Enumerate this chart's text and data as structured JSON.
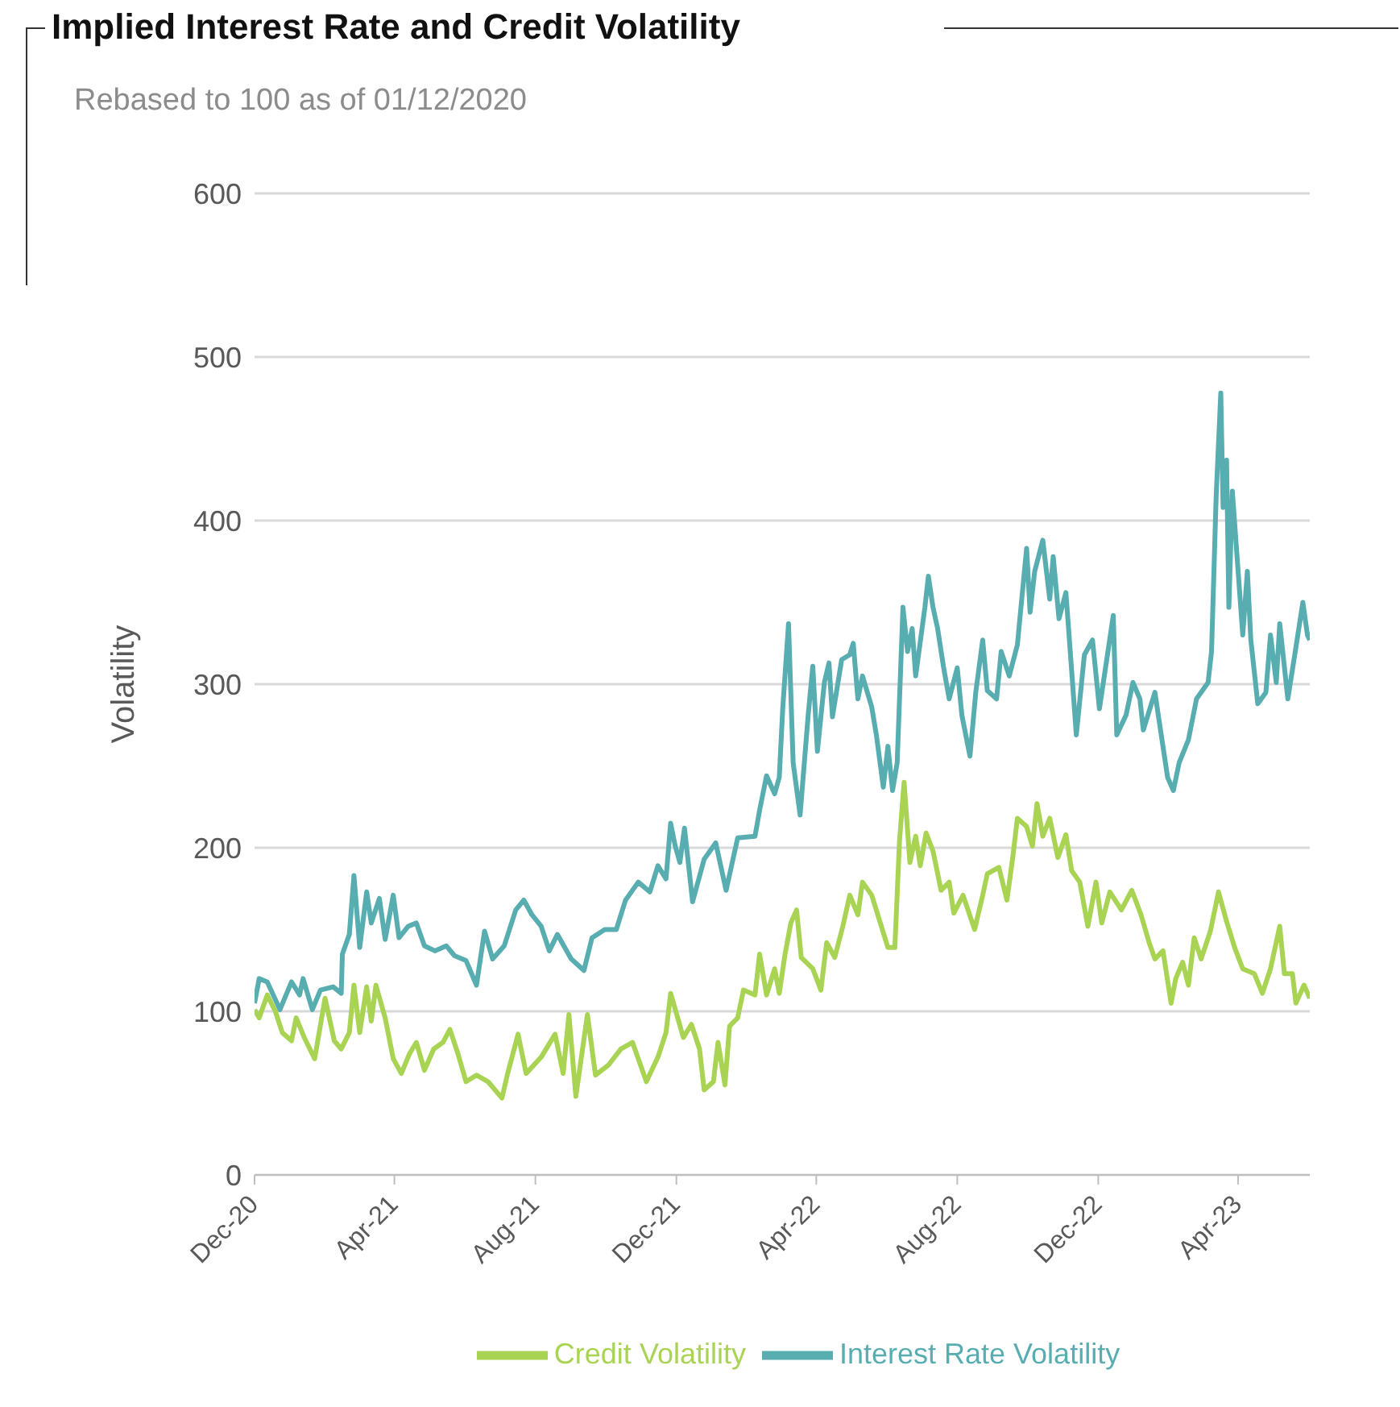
{
  "chart_data": {
    "type": "line",
    "title": "Implied Interest Rate and Credit Volatility",
    "subtitle": "Rebased to 100 as of 01/12/2020",
    "ylabel": "Volatility",
    "xlim": [
      "2020-12-01",
      "2023-06-02"
    ],
    "xticks": [
      {
        "value": "2020-12-01",
        "label": "Dec-20"
      },
      {
        "value": "2021-04-01",
        "label": "Apr-21"
      },
      {
        "value": "2021-08-01",
        "label": "Aug-21"
      },
      {
        "value": "2021-12-01",
        "label": "Dec-21"
      },
      {
        "value": "2022-04-01",
        "label": "Apr-22"
      },
      {
        "value": "2022-08-01",
        "label": "Aug-22"
      },
      {
        "value": "2022-12-01",
        "label": "Dec-22"
      },
      {
        "value": "2023-04-01",
        "label": "Apr-23"
      }
    ],
    "ylim": [
      0,
      600
    ],
    "yticks": [
      0,
      100,
      200,
      300,
      400,
      500,
      600
    ],
    "grid": "y",
    "legend": "bottom",
    "marker": "none",
    "line_style": "solid",
    "series": [
      {
        "name": "Interest Rate Volatility",
        "color": "#57adb0",
        "x": [
          "2020-12-01",
          "2020-12-05",
          "2020-12-12",
          "2020-12-23",
          "2021-01-02",
          "2021-01-09",
          "2021-01-12",
          "2021-01-20",
          "2021-01-27",
          "2021-02-07",
          "2021-02-14",
          "2021-02-15",
          "2021-02-21",
          "2021-02-25",
          "2021-03-02",
          "2021-03-08",
          "2021-03-12",
          "2021-03-19",
          "2021-03-24",
          "2021-03-31",
          "2021-04-05",
          "2021-04-13",
          "2021-04-20",
          "2021-04-27",
          "2021-05-06",
          "2021-05-16",
          "2021-05-23",
          "2021-06-02",
          "2021-06-11",
          "2021-06-18",
          "2021-06-25",
          "2021-07-05",
          "2021-07-15",
          "2021-07-22",
          "2021-07-29",
          "2021-08-06",
          "2021-08-13",
          "2021-08-20",
          "2021-09-01",
          "2021-09-12",
          "2021-09-19",
          "2021-09-30",
          "2021-10-10",
          "2021-10-18",
          "2021-10-29",
          "2021-11-08",
          "2021-11-15",
          "2021-11-22",
          "2021-11-26",
          "2021-11-30",
          "2021-12-04",
          "2021-12-08",
          "2021-12-15",
          "2021-12-25",
          "2022-01-04",
          "2022-01-13",
          "2022-01-23",
          "2022-02-07",
          "2022-02-11",
          "2022-02-17",
          "2022-02-24",
          "2022-02-28",
          "2022-03-03",
          "2022-03-08",
          "2022-03-12",
          "2022-03-18",
          "2022-03-25",
          "2022-03-29",
          "2022-04-02",
          "2022-04-08",
          "2022-04-12",
          "2022-04-15",
          "2022-04-23",
          "2022-04-30",
          "2022-05-03",
          "2022-05-07",
          "2022-05-11",
          "2022-05-19",
          "2022-05-23",
          "2022-05-29",
          "2022-06-02",
          "2022-06-06",
          "2022-06-10",
          "2022-06-15",
          "2022-06-19",
          "2022-06-23",
          "2022-06-26",
          "2022-07-04",
          "2022-07-07",
          "2022-07-11",
          "2022-07-15",
          "2022-07-20",
          "2022-07-25",
          "2022-08-01",
          "2022-08-05",
          "2022-08-12",
          "2022-08-17",
          "2022-08-23",
          "2022-08-27",
          "2022-09-04",
          "2022-09-08",
          "2022-09-15",
          "2022-09-22",
          "2022-09-30",
          "2022-10-03",
          "2022-10-07",
          "2022-10-14",
          "2022-10-20",
          "2022-10-23",
          "2022-10-28",
          "2022-11-03",
          "2022-11-08",
          "2022-11-12",
          "2022-11-19",
          "2022-11-26",
          "2022-12-02",
          "2022-12-14",
          "2022-12-17",
          "2022-12-25",
          "2022-12-31",
          "2023-01-06",
          "2023-01-09",
          "2023-01-19",
          "2023-01-23",
          "2023-01-30",
          "2023-02-04",
          "2023-02-09",
          "2023-02-17",
          "2023-02-24",
          "2023-03-06",
          "2023-03-09",
          "2023-03-13",
          "2023-03-17",
          "2023-03-19",
          "2023-03-22",
          "2023-03-24",
          "2023-03-27",
          "2023-04-01",
          "2023-04-05",
          "2023-04-09",
          "2023-04-12",
          "2023-04-18",
          "2023-04-25",
          "2023-04-29",
          "2023-05-04",
          "2023-05-07",
          "2023-05-14",
          "2023-05-20",
          "2023-05-27",
          "2023-05-31",
          "2023-06-02"
        ],
        "values": [
          105,
          120,
          118,
          101,
          118,
          110,
          120,
          101,
          113,
          115,
          111,
          135,
          147,
          183,
          139,
          173,
          154,
          169,
          144,
          171,
          145,
          152,
          154,
          140,
          137,
          140,
          134,
          131,
          116,
          149,
          132,
          140,
          162,
          168,
          159,
          152,
          137,
          147,
          132,
          125,
          145,
          150,
          150,
          168,
          179,
          173,
          189,
          181,
          215,
          201,
          191,
          212,
          167,
          193,
          203,
          174,
          206,
          207,
          223,
          244,
          233,
          243,
          285,
          337,
          252,
          220,
          281,
          311,
          259,
          301,
          313,
          280,
          315,
          318,
          325,
          291,
          305,
          286,
          269,
          237,
          262,
          235,
          252,
          347,
          320,
          334,
          305,
          347,
          366,
          347,
          334,
          311,
          291,
          310,
          281,
          256,
          295,
          327,
          296,
          291,
          320,
          305,
          324,
          383,
          344,
          369,
          388,
          352,
          378,
          340,
          356,
          308,
          269,
          318,
          327,
          285,
          342,
          269,
          281,
          301,
          291,
          272,
          295,
          276,
          243,
          235,
          252,
          266,
          291,
          301,
          320,
          415,
          478,
          408,
          437,
          347,
          418,
          369,
          330,
          369,
          327,
          288,
          295,
          330,
          301,
          337,
          291,
          318,
          350,
          330,
          327
        ]
      },
      {
        "name": "Credit Volatility",
        "color": "#a9d352",
        "x": [
          "2020-12-01",
          "2020-12-05",
          "2020-12-12",
          "2020-12-19",
          "2020-12-25",
          "2021-01-02",
          "2021-01-06",
          "2021-01-13",
          "2021-01-22",
          "2021-01-31",
          "2021-02-08",
          "2021-02-14",
          "2021-02-21",
          "2021-02-25",
          "2021-03-02",
          "2021-03-08",
          "2021-03-12",
          "2021-03-16",
          "2021-03-24",
          "2021-03-31",
          "2021-04-07",
          "2021-04-14",
          "2021-04-20",
          "2021-04-27",
          "2021-05-05",
          "2021-05-13",
          "2021-05-19",
          "2021-05-26",
          "2021-06-02",
          "2021-06-11",
          "2021-06-21",
          "2021-07-03",
          "2021-07-08",
          "2021-07-17",
          "2021-07-24",
          "2021-08-06",
          "2021-08-18",
          "2021-08-25",
          "2021-08-30",
          "2021-09-05",
          "2021-09-15",
          "2021-09-22",
          "2021-10-03",
          "2021-10-14",
          "2021-10-24",
          "2021-11-05",
          "2021-11-15",
          "2021-11-22",
          "2021-11-26",
          "2021-12-07",
          "2021-12-14",
          "2021-12-21",
          "2021-12-25",
          "2022-01-02",
          "2022-01-06",
          "2022-01-12",
          "2022-01-16",
          "2022-01-23",
          "2022-01-28",
          "2022-02-07",
          "2022-02-11",
          "2022-02-17",
          "2022-02-24",
          "2022-02-28",
          "2022-03-05",
          "2022-03-10",
          "2022-03-15",
          "2022-03-19",
          "2022-03-29",
          "2022-04-05",
          "2022-04-10",
          "2022-04-17",
          "2022-04-24",
          "2022-04-30",
          "2022-05-07",
          "2022-05-11",
          "2022-05-19",
          "2022-05-26",
          "2022-06-02",
          "2022-06-08",
          "2022-06-12",
          "2022-06-16",
          "2022-06-21",
          "2022-06-26",
          "2022-06-30",
          "2022-07-05",
          "2022-07-11",
          "2022-07-18",
          "2022-07-25",
          "2022-07-29",
          "2022-08-06",
          "2022-08-16",
          "2022-08-23",
          "2022-08-27",
          "2022-09-06",
          "2022-09-13",
          "2022-09-18",
          "2022-09-22",
          "2022-09-30",
          "2022-10-05",
          "2022-10-09",
          "2022-10-14",
          "2022-10-20",
          "2022-10-27",
          "2022-11-03",
          "2022-11-08",
          "2022-11-15",
          "2022-11-22",
          "2022-11-29",
          "2022-12-04",
          "2022-12-11",
          "2022-12-21",
          "2022-12-30",
          "2023-01-07",
          "2023-01-14",
          "2023-01-19",
          "2023-01-26",
          "2023-02-02",
          "2023-02-06",
          "2023-02-12",
          "2023-02-17",
          "2023-02-22",
          "2023-02-28",
          "2023-03-08",
          "2023-03-15",
          "2023-03-22",
          "2023-03-29",
          "2023-04-05",
          "2023-04-15",
          "2023-04-22",
          "2023-04-29",
          "2023-05-07",
          "2023-05-11",
          "2023-05-18",
          "2023-05-21",
          "2023-05-28",
          "2023-06-02"
        ],
        "values": [
          101,
          96,
          110,
          100,
          87,
          82,
          96,
          84,
          71,
          108,
          82,
          77,
          87,
          116,
          87,
          115,
          94,
          116,
          96,
          71,
          62,
          74,
          81,
          64,
          77,
          81,
          89,
          74,
          57,
          61,
          57,
          47,
          62,
          86,
          62,
          72,
          86,
          62,
          98,
          48,
          98,
          61,
          67,
          77,
          81,
          57,
          72,
          87,
          111,
          84,
          92,
          77,
          52,
          57,
          81,
          55,
          91,
          96,
          113,
          110,
          135,
          110,
          126,
          111,
          135,
          154,
          162,
          133,
          126,
          113,
          142,
          133,
          152,
          171,
          159,
          179,
          171,
          155,
          139,
          139,
          204,
          240,
          191,
          207,
          189,
          209,
          198,
          174,
          179,
          160,
          171,
          150,
          171,
          184,
          188,
          168,
          194,
          218,
          213,
          201,
          227,
          207,
          218,
          194,
          208,
          186,
          179,
          152,
          179,
          154,
          173,
          162,
          174,
          159,
          142,
          132,
          137,
          105,
          120,
          130,
          116,
          145,
          132,
          149,
          173,
          155,
          139,
          126,
          123,
          111,
          126,
          152,
          123,
          123,
          105,
          116,
          108
        ]
      }
    ]
  }
}
